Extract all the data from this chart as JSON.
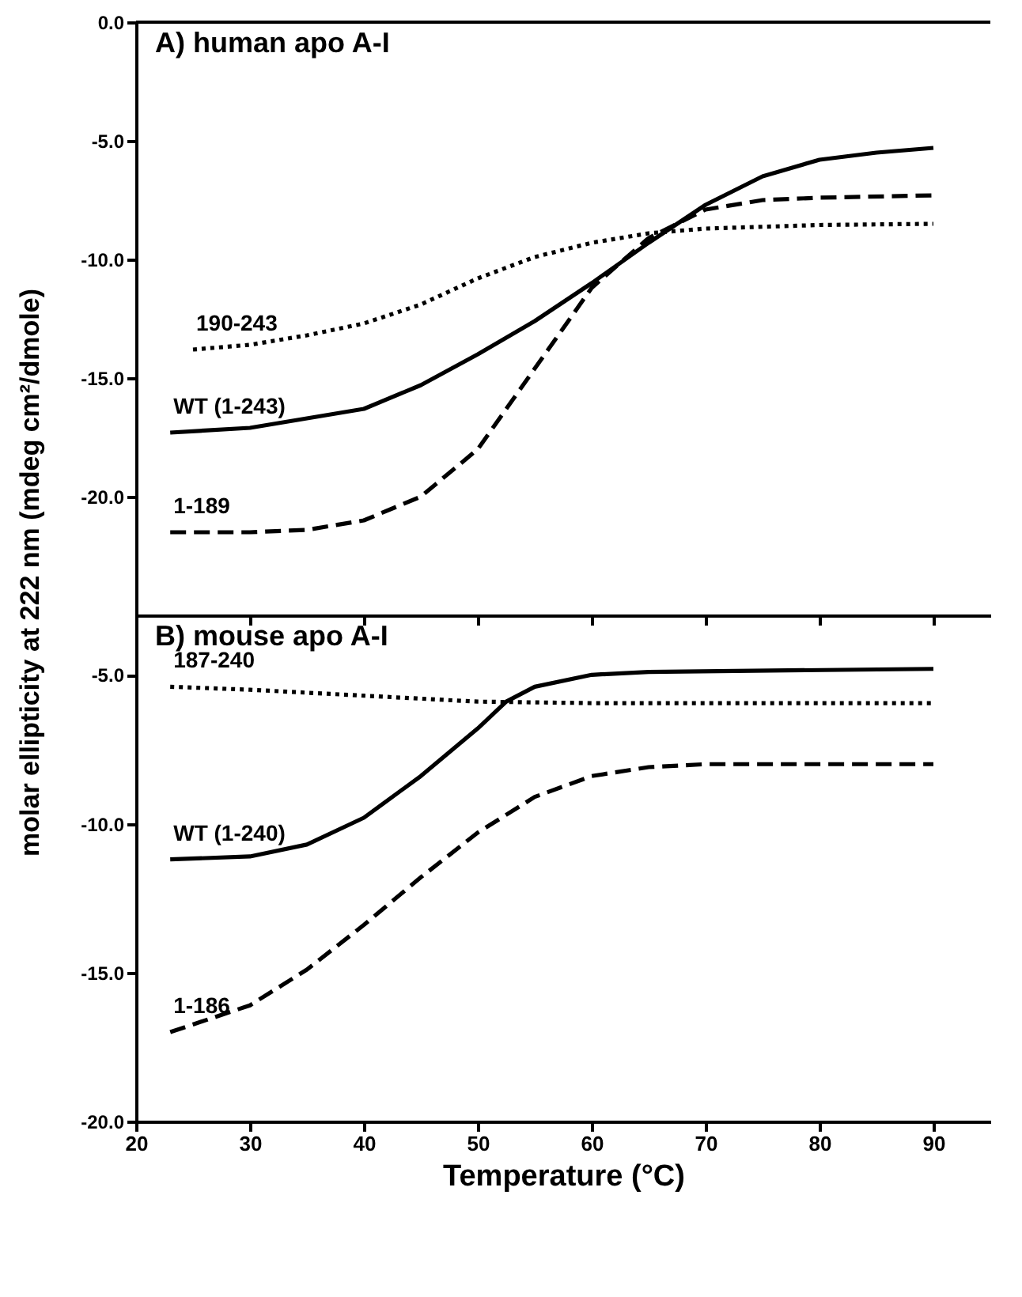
{
  "chart_data": [
    {
      "type": "line",
      "title": "A)  human apo A-I",
      "ylabel": "molar ellipticity at 222 nm (mdeg cm²/dmole)",
      "xlim": [
        20,
        95
      ],
      "xticks": [
        20,
        30,
        40,
        50,
        60,
        70,
        80,
        90
      ],
      "ylim": [
        -25,
        0
      ],
      "yticks": [
        {
          "value": 0,
          "label": "0.0"
        },
        {
          "value": -5,
          "label": "-5.0"
        },
        {
          "value": -10,
          "label": "-10.0"
        },
        {
          "value": -15,
          "label": "-15.0"
        },
        {
          "value": -20,
          "label": "-20.0"
        }
      ],
      "tick_labels": "y",
      "grid": false,
      "series": [
        {
          "name": "190-243",
          "color": "#000000",
          "line_style": "dotted",
          "x": [
            25,
            30,
            35,
            40,
            45,
            50,
            55,
            60,
            65,
            70,
            80,
            90
          ],
          "values": [
            -13.8,
            -13.6,
            -13.2,
            -12.7,
            -11.9,
            -10.8,
            -9.9,
            -9.3,
            -8.9,
            -8.7,
            -8.55,
            -8.5
          ]
        },
        {
          "name": "WT (1-243)",
          "color": "#000000",
          "line_style": "solid",
          "x": [
            23,
            30,
            40,
            45,
            50,
            55,
            60,
            65,
            70,
            75,
            80,
            85,
            90
          ],
          "values": [
            -17.3,
            -17.1,
            -16.3,
            -15.3,
            -14.0,
            -12.6,
            -11.0,
            -9.3,
            -7.7,
            -6.5,
            -5.8,
            -5.5,
            -5.3
          ]
        },
        {
          "name": "1-189",
          "color": "#000000",
          "line_style": "dashed",
          "x": [
            23,
            30,
            35,
            40,
            45,
            50,
            55,
            60,
            65,
            70,
            75,
            80,
            90
          ],
          "values": [
            -21.5,
            -21.5,
            -21.4,
            -21.0,
            -20.0,
            -18.0,
            -14.6,
            -11.2,
            -9.1,
            -7.9,
            -7.5,
            -7.4,
            -7.3
          ]
        }
      ]
    },
    {
      "type": "line",
      "title": "B)  mouse apo A-I",
      "xlabel": "Temperature (°C)",
      "xlim": [
        20,
        95
      ],
      "xticks": [
        20,
        30,
        40,
        50,
        60,
        70,
        80,
        90
      ],
      "ylim": [
        -20,
        -3
      ],
      "yticks": [
        {
          "value": -5,
          "label": "-5.0"
        },
        {
          "value": -10,
          "label": "-10.0"
        },
        {
          "value": -15,
          "label": "-15.0"
        },
        {
          "value": -20,
          "label": "-20.0"
        }
      ],
      "grid": false,
      "series": [
        {
          "name": "187-240",
          "color": "#000000",
          "line_style": "dotted",
          "x": [
            23,
            30,
            40,
            50,
            60,
            90
          ],
          "values": [
            -5.4,
            -5.5,
            -5.7,
            -5.9,
            -5.95,
            -5.95
          ]
        },
        {
          "name": "WT (1-240)",
          "color": "#000000",
          "line_style": "solid",
          "x": [
            23,
            30,
            35,
            40,
            45,
            50,
            52.5,
            55,
            60,
            65,
            90
          ],
          "values": [
            -11.2,
            -11.1,
            -10.7,
            -9.8,
            -8.4,
            -6.8,
            -5.9,
            -5.4,
            -5.0,
            -4.9,
            -4.8
          ]
        },
        {
          "name": "1-186",
          "color": "#000000",
          "line_style": "dashed",
          "x": [
            23,
            30,
            35,
            40,
            45,
            50,
            55,
            60,
            65,
            70,
            90
          ],
          "values": [
            -17.0,
            -16.1,
            -14.9,
            -13.4,
            -11.8,
            -10.3,
            -9.1,
            -8.4,
            -8.1,
            -8.0,
            -8.0
          ]
        }
      ]
    }
  ]
}
